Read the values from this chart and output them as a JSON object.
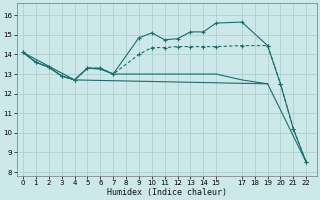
{
  "xlabel": "Humidex (Indice chaleur)",
  "bg_color": "#cce8e8",
  "grid_color": "#aacccc",
  "line_color": "#1a6e6e",
  "xlim": [
    -0.5,
    22.8
  ],
  "ylim": [
    7.8,
    16.6
  ],
  "xticks": [
    0,
    1,
    2,
    3,
    4,
    5,
    6,
    7,
    8,
    9,
    10,
    11,
    12,
    13,
    14,
    15,
    17,
    18,
    19,
    20,
    21,
    22
  ],
  "yticks": [
    8,
    9,
    10,
    11,
    12,
    13,
    14,
    15,
    16
  ],
  "line1": {
    "x": [
      0,
      1,
      2,
      3,
      4,
      5,
      6,
      7,
      9,
      10,
      11,
      12,
      13,
      14,
      15,
      17,
      19,
      20,
      21,
      22
    ],
    "y": [
      14.1,
      13.6,
      13.35,
      12.9,
      12.7,
      13.3,
      13.3,
      13.0,
      14.85,
      15.1,
      14.75,
      14.8,
      15.15,
      15.15,
      15.6,
      15.65,
      14.45,
      12.5,
      10.2,
      8.5
    ]
  },
  "line2": {
    "x": [
      0,
      1,
      2,
      3,
      4,
      5,
      6,
      7,
      9,
      10,
      11,
      12,
      13,
      14,
      15,
      17,
      19,
      20,
      21,
      22
    ],
    "y": [
      14.1,
      13.6,
      13.35,
      12.9,
      12.7,
      13.3,
      13.3,
      13.0,
      14.0,
      14.35,
      14.35,
      14.4,
      14.4,
      14.4,
      14.4,
      14.45,
      14.45,
      12.5,
      10.2,
      8.5
    ]
  },
  "line3": {
    "x": [
      0,
      1,
      2,
      3,
      4,
      5,
      6,
      7,
      8,
      9,
      10,
      11,
      12,
      13,
      14,
      15,
      17,
      19
    ],
    "y": [
      14.1,
      13.6,
      13.35,
      12.9,
      12.7,
      13.3,
      13.25,
      13.0,
      13.0,
      13.0,
      13.0,
      13.0,
      13.0,
      13.0,
      13.0,
      13.0,
      12.7,
      12.5
    ]
  },
  "line4": {
    "x": [
      0,
      4,
      19,
      22
    ],
    "y": [
      14.1,
      12.7,
      12.5,
      8.5
    ]
  }
}
